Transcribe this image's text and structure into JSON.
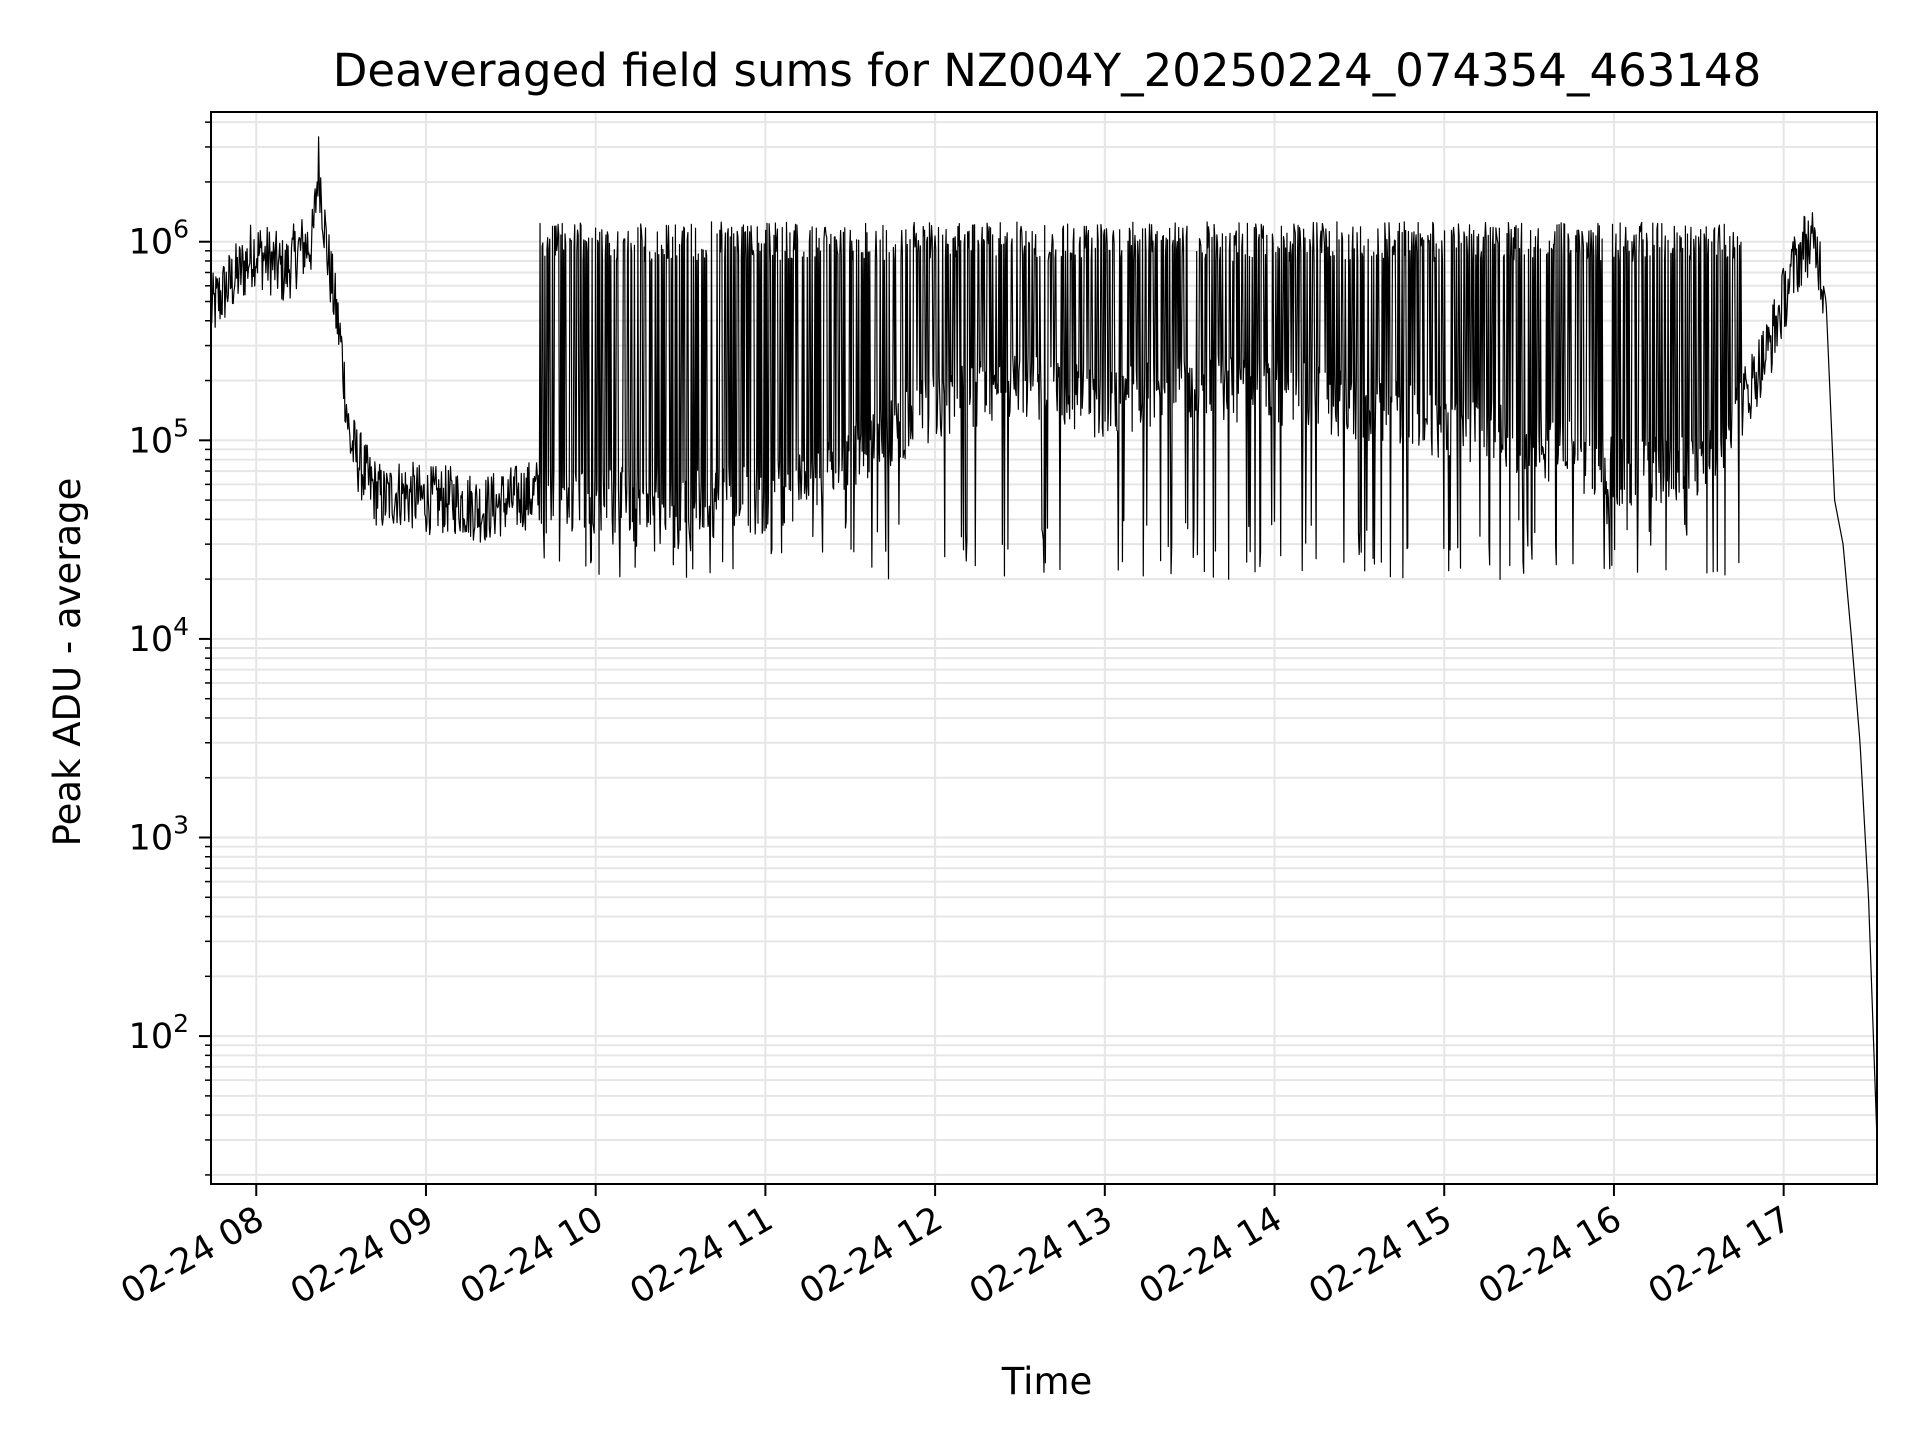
{
  "chart_data": {
    "type": "line",
    "title": "Deaveraged field sums for NZ004Y_20250224_074354_463148",
    "xlabel": "Time",
    "ylabel": "Peak ADU - average",
    "yscale": "log",
    "grid": true,
    "legend": "none",
    "line_color": "#000000",
    "grid_color": "#e6e6e6",
    "xlim": [
      "2025-02-24T07:44",
      "2025-02-24T17:33"
    ],
    "ylim": [
      18,
      4500000
    ],
    "x_ticks": [
      {
        "value": "2025-02-24T08:00",
        "label": "02-24 08"
      },
      {
        "value": "2025-02-24T09:00",
        "label": "02-24 09"
      },
      {
        "value": "2025-02-24T10:00",
        "label": "02-24 10"
      },
      {
        "value": "2025-02-24T11:00",
        "label": "02-24 11"
      },
      {
        "value": "2025-02-24T12:00",
        "label": "02-24 12"
      },
      {
        "value": "2025-02-24T13:00",
        "label": "02-24 13"
      },
      {
        "value": "2025-02-24T14:00",
        "label": "02-24 14"
      },
      {
        "value": "2025-02-24T15:00",
        "label": "02-24 15"
      },
      {
        "value": "2025-02-24T16:00",
        "label": "02-24 16"
      },
      {
        "value": "2025-02-24T17:00",
        "label": "02-24 17"
      }
    ],
    "y_ticks": [
      {
        "value": 100,
        "base": "10",
        "exp": "2"
      },
      {
        "value": 1000,
        "base": "10",
        "exp": "3"
      },
      {
        "value": 10000,
        "base": "10",
        "exp": "4"
      },
      {
        "value": 100000,
        "base": "10",
        "exp": "5"
      },
      {
        "value": 1000000,
        "base": "10",
        "exp": "6"
      }
    ],
    "series": [
      {
        "x": [
          "2025-02-24T07:44",
          "2025-02-24T07:50",
          "2025-02-24T07:56",
          "2025-02-24T07:59",
          "2025-02-24T08:05",
          "2025-02-24T08:10",
          "2025-02-24T08:15",
          "2025-02-24T08:20",
          "2025-02-24T08:22",
          "2025-02-24T08:25",
          "2025-02-24T08:30",
          "2025-02-24T08:33",
          "2025-02-24T08:36",
          "2025-02-24T08:40",
          "2025-02-24T08:45",
          "2025-02-24T08:50",
          "2025-02-24T09:00",
          "2025-02-24T09:10",
          "2025-02-24T09:20",
          "2025-02-24T09:30",
          "2025-02-24T09:40",
          "2025-02-24T09:50",
          "2025-02-24T10:00",
          "2025-02-24T10:15",
          "2025-02-24T10:30",
          "2025-02-24T10:45",
          "2025-02-24T11:00",
          "2025-02-24T11:30",
          "2025-02-24T12:00",
          "2025-02-24T12:30",
          "2025-02-24T13:00",
          "2025-02-24T13:30",
          "2025-02-24T14:00",
          "2025-02-24T14:30",
          "2025-02-24T15:00",
          "2025-02-24T15:30",
          "2025-02-24T16:00",
          "2025-02-24T16:30",
          "2025-02-24T16:45",
          "2025-02-24T16:55",
          "2025-02-24T17:03",
          "2025-02-24T17:08",
          "2025-02-24T17:12",
          "2025-02-24T17:15",
          "2025-02-24T17:18",
          "2025-02-24T17:21",
          "2025-02-24T17:24",
          "2025-02-24T17:27",
          "2025-02-24T17:30",
          "2025-02-24T17:33"
        ],
        "y": [
          450000,
          600000,
          750000,
          900000,
          800000,
          700000,
          900000,
          1000000,
          2500000,
          900000,
          300000,
          100000,
          80000,
          60000,
          50000,
          55000,
          50000,
          50000,
          45000,
          50000,
          55000,
          50000,
          50000,
          50000,
          50000,
          50000,
          50000,
          80000,
          150000,
          200000,
          150000,
          180000,
          180000,
          150000,
          120000,
          100000,
          70000,
          70000,
          150000,
          300000,
          700000,
          1000000,
          900000,
          500000,
          50000,
          30000,
          10000,
          3000,
          500,
          30
        ]
      }
    ]
  }
}
